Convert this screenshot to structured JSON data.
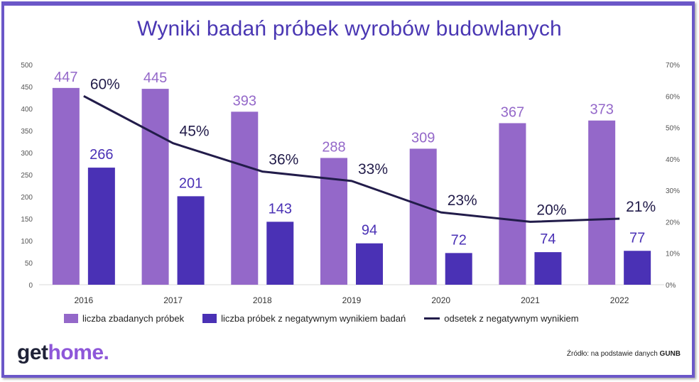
{
  "title": "Wyniki badań próbek wyrobów budowlanych",
  "chart_data": {
    "type": "bar",
    "categories": [
      "2016",
      "2017",
      "2018",
      "2019",
      "2020",
      "2021",
      "2022"
    ],
    "series": [
      {
        "name": "liczba zbadanych próbek",
        "type": "bar",
        "axis": "left",
        "color": "#9468c9",
        "values": [
          447,
          445,
          393,
          288,
          309,
          367,
          373
        ]
      },
      {
        "name": "liczba próbek z negatywnym wynikiem badań",
        "type": "bar",
        "axis": "left",
        "color": "#4a31b5",
        "values": [
          266,
          201,
          143,
          94,
          72,
          74,
          77
        ]
      },
      {
        "name": "odsetek z negatywnym wynikiem",
        "type": "line",
        "axis": "right",
        "color": "#221c4a",
        "values": [
          60,
          45,
          36,
          33,
          23,
          20,
          21
        ],
        "labels": [
          "60%",
          "45%",
          "36%",
          "33%",
          "23%",
          "20%",
          "21%"
        ]
      }
    ],
    "y_left": {
      "min": 0,
      "max": 500,
      "ticks": [
        "0",
        "50",
        "100",
        "150",
        "200",
        "250",
        "300",
        "350",
        "400",
        "450",
        "500"
      ]
    },
    "y_right": {
      "min": 0,
      "max": 70,
      "ticks": [
        "0%",
        "10%",
        "20%",
        "30%",
        "40%",
        "50%",
        "60%",
        "70%"
      ]
    },
    "legend_position": "bottom",
    "grid": false
  },
  "legend": {
    "bar1": "liczba zbadanych próbek",
    "bar2": "liczba próbek z negatywnym wynikiem badań",
    "line": "odsetek z negatywnym wynikiem"
  },
  "logo": {
    "part1": "get",
    "part2": "home."
  },
  "source": {
    "prefix": "Źródło: na podstawie danych ",
    "org": "GUNB"
  }
}
